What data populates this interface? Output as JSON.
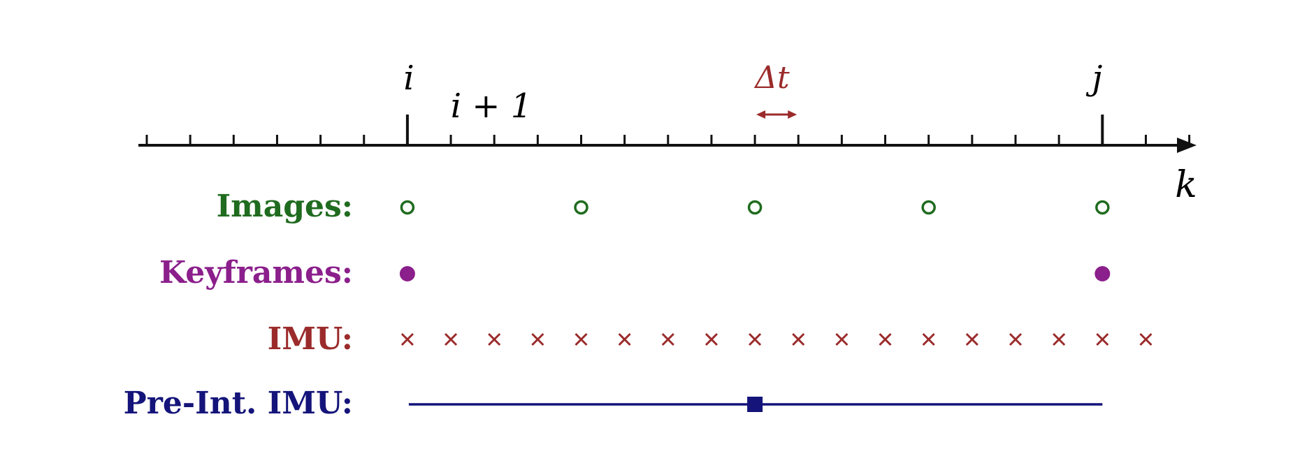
{
  "axis": {
    "variable": "k",
    "tick_count": 25,
    "labels": {
      "i": "i",
      "i_plus_1": "i + 1",
      "j": "j",
      "delta_t": "Δt"
    },
    "major_tick_index": {
      "i": 6,
      "j": 22
    }
  },
  "rows": {
    "images": {
      "label": "Images:",
      "color": "#1f6b1f",
      "marker": "open-circle-icon",
      "tick_indices": [
        6,
        10,
        14,
        18,
        22
      ]
    },
    "keyframes": {
      "label": "Keyframes:",
      "color": "#8b1f8b",
      "marker": "filled-circle-icon",
      "tick_indices": [
        6,
        22
      ]
    },
    "imu": {
      "label": "IMU:",
      "color": "#9b2b2b",
      "marker": "cross-icon",
      "tick_indices": [
        6,
        7,
        8,
        9,
        10,
        11,
        12,
        13,
        14,
        15,
        16,
        17,
        18,
        19,
        20,
        21,
        22,
        23
      ]
    },
    "preint": {
      "label": "Pre-Int. IMU:",
      "color": "#14147a",
      "marker": "filled-square-icon",
      "span_tick_indices": [
        6,
        22
      ],
      "square_tick_index": 14
    }
  },
  "colors": {
    "axis": "#111111",
    "delta": "#9b2b2b"
  }
}
